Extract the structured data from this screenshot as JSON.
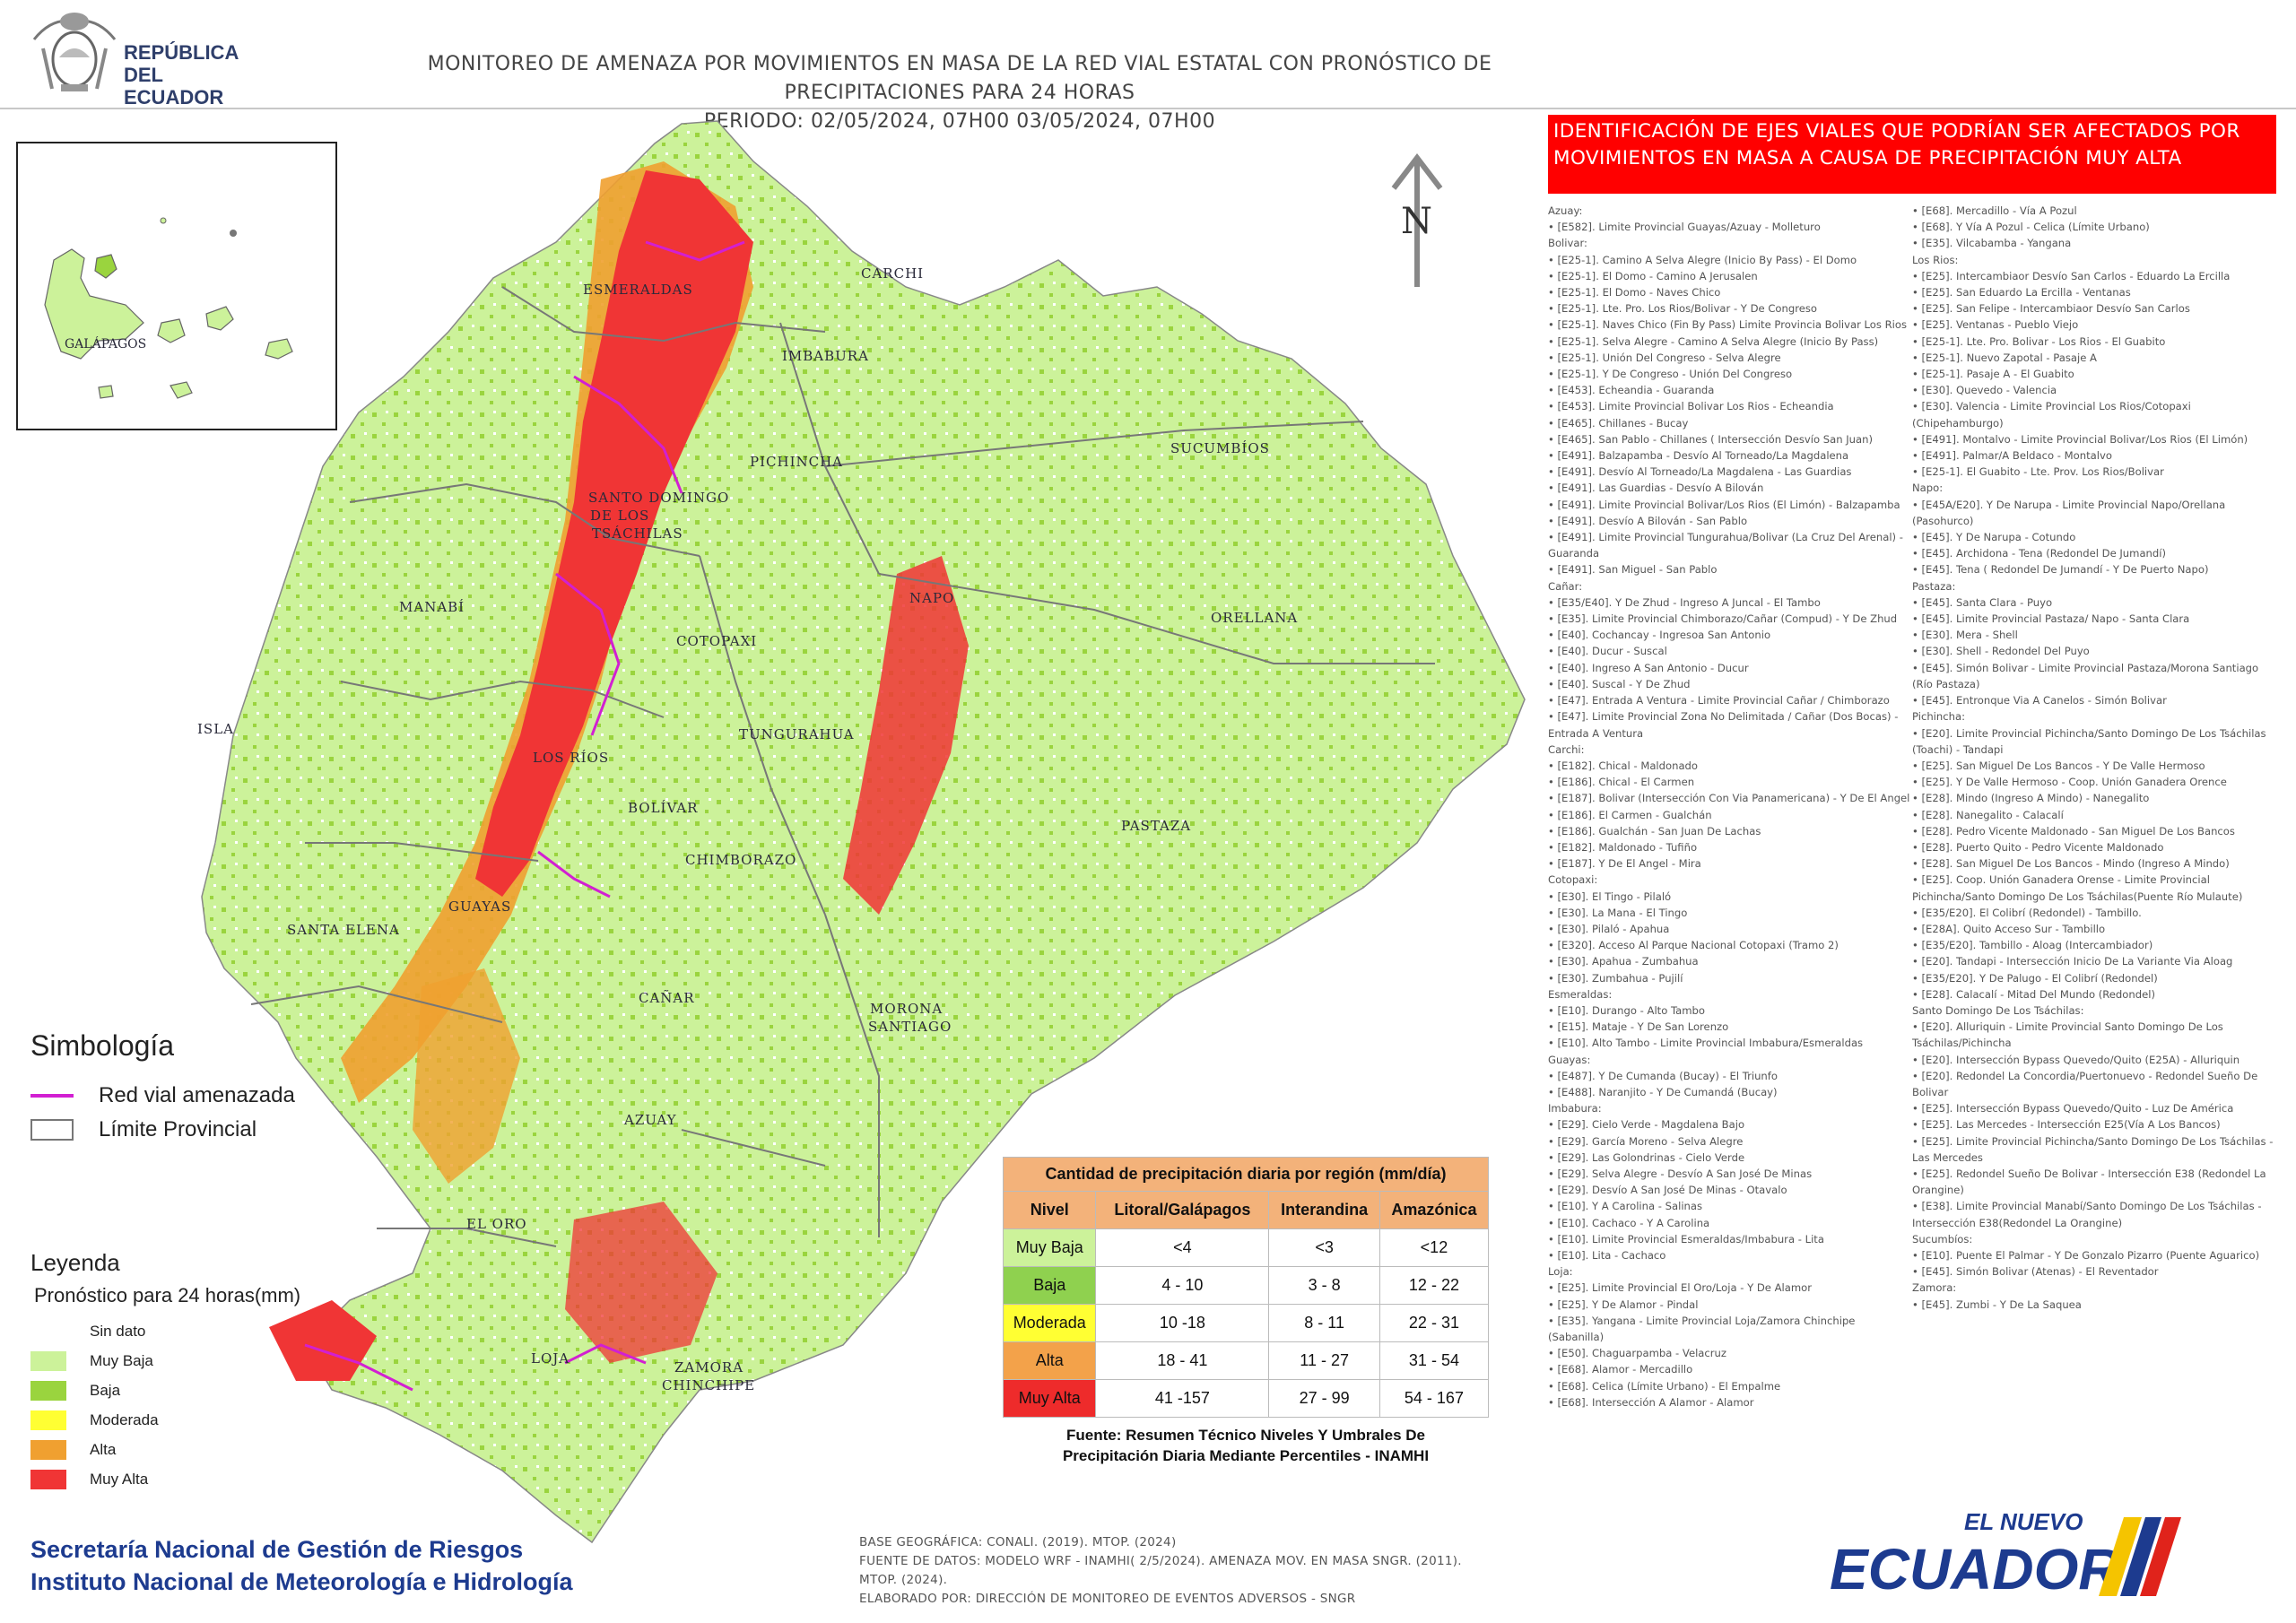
{
  "header": {
    "logo_text_line1": "REPÚBLICA",
    "logo_text_line2": "DEL ECUADOR",
    "title_line1": "MONITOREO DE AMENAZA POR MOVIMIENTOS EN MASA DE LA RED VIAL  ESTATAL  CON PRONÓSTICO  DE  PRECIPITACIONES PARA 24 HORAS",
    "title_line2": "PERIODO: 02/05/2024, 07H00 03/05/2024, 07H00"
  },
  "map": {
    "north_label": "N",
    "inset_label": "GALÁPAGOS",
    "provinces": [
      "ESMERALDAS",
      "CARCHI",
      "IMBABURA",
      "PICHINCHA",
      "SUCUMBÍOS",
      "SANTO DOMINGO",
      "DE LOS",
      "TSÁCHILAS",
      "MANABÍ",
      "COTOPAXI",
      "NAPO",
      "ORELLANA",
      "ISLA",
      "LOS RÍOS",
      "TUNGURAHUA",
      "BOLÍVAR",
      "CHIMBORAZO",
      "PASTAZA",
      "GUAYAS",
      "SANTA ELENA",
      "CAÑAR",
      "MORONA",
      "SANTIAGO",
      "AZUAY",
      "EL ORO",
      "LOJA",
      "ZAMORA",
      "CHINCHIPE"
    ]
  },
  "simbologia": {
    "title": "Simbología",
    "road": "Red vial amenazada",
    "limit": "Límite Provincial"
  },
  "leyenda": {
    "title": "Leyenda",
    "subtitle": "Pronóstico para 24 horas(mm)",
    "items": [
      {
        "label": "Sin dato",
        "color": "#ffffff"
      },
      {
        "label": "Muy Baja",
        "color": "#ccf29a"
      },
      {
        "label": "Baja",
        "color": "#9ad43e"
      },
      {
        "label": "Moderada",
        "color": "#ffff33"
      },
      {
        "label": "Alta",
        "color": "#f0a030"
      },
      {
        "label": "Muy Alta",
        "color": "#f03535"
      }
    ]
  },
  "precip_table": {
    "caption": "Cantidad de precipitación diaria por región (mm/día)",
    "headers": [
      "Nivel",
      "Litoral/Galápagos",
      "Interandina",
      "Amazónica"
    ],
    "rows": [
      {
        "level": "Muy Baja",
        "color": "#ccf29a",
        "values": [
          "<4",
          "<3",
          "<12"
        ]
      },
      {
        "level": "Baja",
        "color": "#8fd14f",
        "values": [
          "4 - 10",
          "3 - 8",
          "12 - 22"
        ]
      },
      {
        "level": "Moderada",
        "color": "#ffff33",
        "values": [
          "10 -18",
          "8 - 11",
          "22 - 31"
        ]
      },
      {
        "level": "Alta",
        "color": "#f3a24a",
        "values": [
          "18 - 41",
          "11 - 27",
          "31 - 54"
        ]
      },
      {
        "level": "Muy Alta",
        "color": "#ee2b2b",
        "values": [
          "41 -157",
          "27 - 99",
          "54 - 167"
        ]
      }
    ],
    "source_line1": "Fuente: Resumen Técnico Niveles Y Umbrales De",
    "source_line2": "Precipitación Diaria Mediante Percentiles - INAMHI"
  },
  "road_list": {
    "title": "IDENTIFICACIÓN DE EJES VIALES QUE PODRÍAN SER AFECTADOS POR MOVIMIENTOS EN MASA A CAUSA DE PRECIPITACIÓN MUY ALTA",
    "col1": [
      "Azuay:",
      "• [E582]. Limite Provincial Guayas/Azuay - Molleturo",
      "Bolivar:",
      "• [E25-1]. Camino A Selva Alegre (Inicio By Pass) - El Domo",
      "• [E25-1]. El Domo - Camino A Jerusalen",
      "• [E25-1]. El Domo - Naves Chico",
      "• [E25-1]. Lte. Pro. Los Rios/Bolivar - Y De Congreso",
      "• [E25-1]. Naves Chico (Fin By Pass) Limite Provincia Bolivar Los Rios",
      "• [E25-1]. Selva Alegre - Camino A Selva Alegre (Inicio By Pass)",
      "• [E25-1]. Unión Del Congreso - Selva  Alegre",
      "• [E25-1]. Y De Congreso - Unión Del Congreso",
      "• [E453]. Echeandia - Guaranda",
      "• [E453]. Limite Provincial Bolivar Los Rios - Echeandia",
      "• [E465]. Chillanes - Bucay",
      "• [E465]. San Pablo - Chillanes ( Intersección Desvío San Juan)",
      "• [E491]. Balzapamba - Desvío Al Torneado/La Magdalena",
      "• [E491]. Desvío Al Torneado/La Magdalena - Las Guardias",
      "• [E491]. Las Guardias - Desvío A Bilován",
      "• [E491]. Limite Provincial Bolivar/Los Rios (El Limón) - Balzapamba",
      "• [E491]. Desvío A Bilován - San Pablo",
      "• [E491]. Limite Provincial Tungurahua/Bolivar (La Cruz Del Arenal) - Guaranda",
      "• [E491]. San Miguel - San Pablo",
      "Cañar:",
      "• [E35/E40]. Y De Zhud - Ingreso A Juncal - El Tambo",
      "• [E35]. Limite Provincial Chimborazo/Cañar (Compud) - Y De Zhud",
      "• [E40]. Cochancay - Ingresoa San Antonio",
      "• [E40]. Ducur - Suscal",
      "• [E40]. Ingreso A San Antonio - Ducur",
      "• [E40]. Suscal - Y De Zhud",
      "• [E47]. Entrada A Ventura -  Limite Provincial Cañar / Chimborazo",
      "• [E47]. Limite Provincial Zona No Delimitada / Cañar (Dos Bocas) - Entrada  A Ventura",
      "Carchi:",
      "• [E182]. Chical - Maldonado",
      "• [E186]. Chical - El Carmen",
      "• [E187]. Bolivar (Intersección Con Via Panamericana) - Y De El Angel",
      "• [E186]. El Carmen - Gualchán",
      "• [E186]. Gualchán - San Juan De Lachas",
      "• [E182]. Maldonado - Tufiño",
      "• [E187]. Y De El Angel - Mira",
      "Cotopaxi:",
      "• [E30]. El Tingo - Pilaló",
      "• [E30]. La Mana - El Tingo",
      "• [E30]. Pilaló - Apahua",
      "• [E320]. Acceso Al Parque Nacional Cotopaxi (Tramo 2)",
      "• [E30]. Apahua - Zumbahua",
      "• [E30]. Zumbahua - Pujilí",
      "Esmeraldas:",
      "• [E10]. Durango - Alto Tambo",
      "• [E15]. Mataje - Y De San Lorenzo",
      "• [E10]. Alto Tambo - Limite Provincial Imbabura/Esmeraldas",
      "Guayas:",
      "• [E487]. Y De Cumanda (Bucay) - El Triunfo",
      "• [E488]. Naranjito - Y De Cumandá (Bucay)",
      "Imbabura:",
      "• [E29]. Cielo Verde - Magdalena Bajo",
      "• [E29]. García Moreno - Selva  Alegre",
      "• [E29]. Las Golondrinas - Cielo Verde",
      "• [E29]. Selva  Alegre - Desvío  A San José De Minas",
      "• [E29]. Desvío  A San José De Minas - Otavalo",
      "• [E10]. Y A Carolina - Salinas",
      "• [E10]. Cachaco - Y A Carolina",
      "• [E10]. Limite Provincial Esmeraldas/Imbabura - Lita",
      "• [E10]. Lita - Cachaco",
      "Loja:",
      "• [E25]. Limite Provincial El Oro/Loja - Y De Alamor",
      "• [E25]. Y De Alamor - Pindal",
      "• [E35]. Yangana - Limite Provincial Loja/Zamora Chinchipe (Sabanilla)",
      "• [E50]. Chaguarpamba - Velacruz",
      "• [E68]. Alamor - Mercadillo",
      "• [E68]. Celica (Límite Urbano) - El Empalme",
      "• [E68]. Intersección A  Alamor - Alamor"
    ],
    "col2": [
      "• [E68]. Mercadillo - Vía  A Pozul",
      "• [E68]. Y Vía A Pozul - Celica (Límite Urbano)",
      "• [E35]. Vilcabamba - Yangana",
      "Los Rios:",
      "• [E25]. Intercambiaor Desvío  San Carlos - Eduardo La Ercilla",
      "• [E25]. San Eduardo La Ercilla - Ventanas",
      "• [E25]. San Felipe  - Intercambiaor Desvío  San Carlos",
      "• [E25]. Ventanas - Pueblo Viejo",
      "• [E25-1]. Lte. Pro. Bolivar - Los Rios - El Guabito",
      "• [E25-1]. Nuevo Zapotal - Pasaje A",
      "• [E25-1]. Pasaje A - El Guabito",
      "• [E30]. Quevedo - Valencia",
      "• [E30]. Valencia - Limite Provincial Los Rios/Cotopaxi (Chipehamburgo)",
      "• [E491]. Montalvo - Limite Provincial Bolivar/Los Rios (El Limón)",
      "• [E491]. Palmar/A Beldaco - Montalvo",
      "• [E25-1]. El Guabito - Lte. Prov. Los Rios/Bolivar",
      "Napo:",
      "• [E45A/E20]. Y De Narupa - Limite Provincial Napo/Orellana (Pasohurco)",
      "• [E45]. Y De Narupa - Cotundo",
      "• [E45]. Archidona - Tena (Redondel De Jumandí)",
      "• [E45]. Tena ( Redondel De Jumandí - Y De Puerto Napo)",
      "Pastaza:",
      "• [E45]. Santa Clara - Puyo",
      "• [E45]. Limite Provincial Pastaza/ Napo - Santa Clara",
      "• [E30]. Mera - Shell",
      "• [E30]. Shell - Redondel Del Puyo",
      "• [E45]. Simón Bolivar - Limite Provincial Pastaza/Morona Santiago (Río Pastaza)",
      "• [E45]. Entronque Via A Canelos - Simón Bolivar",
      "Pichincha:",
      "• [E20]. Limite Provincial Pichincha/Santo Domingo De Los Tsáchilas (Toachi) - Tandapi",
      "• [E25]. San Miguel De Los Bancos - Y De Valle Hermoso",
      "• [E25]. Y De Valle Hermoso - Coop. Unión Ganadera Orence",
      "• [E28]. Mindo (Ingreso A Mindo) - Nanegalito",
      "• [E28]. Nanegalito - Calacalí",
      "• [E28]. Pedro Vicente Maldonado - San Miguel De Los Bancos",
      "• [E28]. Puerto Quito - Pedro Vicente Maldonado",
      "• [E28]. San Miguel De Los Bancos - Mindo (Ingreso A Mindo)",
      "• [E25]. Coop. Unión Ganadera Orense - Limite Provincial Pichincha/Santo Domingo De Los Tsáchilas(Puente Río Mulaute)",
      "• [E35/E20]. El Colibrí (Redondel) - Tambillo.",
      "• [E28A]. Quito Acceso Sur - Tambillo",
      "• [E35/E20]. Tambillo - Aloag (Intercambiador)",
      "• [E20]. Tandapi - Intersección Inicio De La Variante Via Aloag",
      "• [E35/E20]. Y De Palugo - El Colibrí (Redondel)",
      "• [E28]. Calacalí - Mitad Del Mundo (Redondel)",
      "Santo Domingo De Los Tsáchilas:",
      "• [E20]. Alluriquin - Limite Provincial Santo Domingo De Los Tsáchilas/Pichincha",
      "• [E20]. Intersección Bypass Quevedo/Quito (E25A) - Alluriquin",
      "• [E20]. Redondel La Concordia/Puertonuevo - Redondel Sueño De Bolivar",
      "• [E25]. Intersección Bypass Quevedo/Quito - Luz De América",
      "• [E25]. Las Mercedes - Intersección E25(Vía A Los Bancos)",
      "• [E25]. Limite Provincial Pichincha/Santo Domingo De Los Tsáchilas - Las Mercedes",
      "• [E25]. Redondel Sueño De Bolivar - Intersección E38 (Redondel La Orangine)",
      "• [E38]. Limite Provincial Manabí/Santo Domingo De Los Tsáchilas - Intersección E38(Redondel La Orangine)",
      "Sucumbíos:",
      "• [E10]. Puente El Palmar - Y De Gonzalo Pizarro (Puente Aguarico)",
      "• [E45]. Simón Bolivar (Atenas) - El Reventador",
      "Zamora:",
      "• [E45]. Zumbi - Y De La Saquea"
    ]
  },
  "footer": {
    "org_line1": "Secretaría Nacional de Gestión de Riesgos",
    "org_line2": "Instituto Nacional de Meteorología e Hidrología",
    "src_line1": "BASE GEOGRÁFICA: CONALI. (2019). MTOP. (2024)",
    "src_line2": "FUENTE DE DATOS: MODELO WRF - INAMHI( 2/5/2024).  AMENAZA MOV. EN MASA SNGR. (2011).",
    "src_line3": "MTOP. (2024).",
    "src_line4": "ELABORADO POR: DIRECCIÓN DE MONITOREO DE EVENTOS ADVERSOS - SNGR",
    "logo_small": "EL NUEVO",
    "logo_big": "ECUADOR"
  }
}
